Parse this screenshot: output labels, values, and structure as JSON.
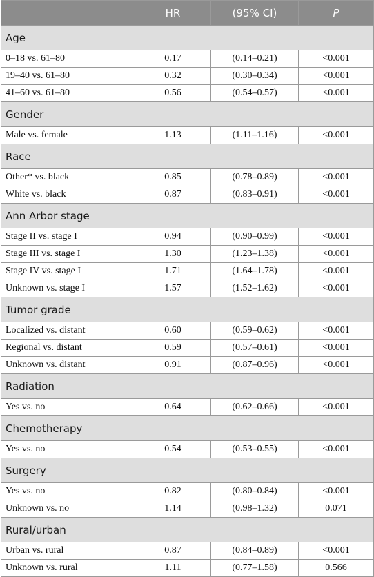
{
  "header": {
    "label": "",
    "hr": "HR",
    "ci": "(95% CI)",
    "p": "P"
  },
  "groups": [
    {
      "title": "Age",
      "rows": [
        {
          "label": "0–18 vs. 61–80",
          "hr": "0.17",
          "ci": "(0.14–0.21)",
          "p": "<0.001"
        },
        {
          "label": "19–40 vs. 61–80",
          "hr": "0.32",
          "ci": "(0.30–0.34)",
          "p": "<0.001"
        },
        {
          "label": "41–60 vs. 61–80",
          "hr": "0.56",
          "ci": "(0.54–0.57)",
          "p": "<0.001"
        }
      ]
    },
    {
      "title": "Gender",
      "rows": [
        {
          "label": "Male vs. female",
          "hr": "1.13",
          "ci": "(1.11–1.16)",
          "p": "<0.001"
        }
      ]
    },
    {
      "title": "Race",
      "rows": [
        {
          "label": "Other* vs. black",
          "hr": "0.85",
          "ci": "(0.78–0.89)",
          "p": "<0.001"
        },
        {
          "label": "White vs. black",
          "hr": "0.87",
          "ci": "(0.83–0.91)",
          "p": "<0.001"
        }
      ]
    },
    {
      "title": "Ann Arbor stage",
      "rows": [
        {
          "label": "Stage II vs. stage I",
          "hr": "0.94",
          "ci": "(0.90–0.99)",
          "p": "<0.001"
        },
        {
          "label": "Stage III vs. stage I",
          "hr": "1.30",
          "ci": "(1.23–1.38)",
          "p": "<0.001"
        },
        {
          "label": "Stage IV vs. stage I",
          "hr": "1.71",
          "ci": "(1.64–1.78)",
          "p": "<0.001"
        },
        {
          "label": "Unknown vs. stage I",
          "hr": "1.57",
          "ci": "(1.52–1.62)",
          "p": "<0.001"
        }
      ]
    },
    {
      "title": "Tumor grade",
      "rows": [
        {
          "label": "Localized vs. distant",
          "hr": "0.60",
          "ci": "(0.59–0.62)",
          "p": "<0.001"
        },
        {
          "label": "Regional vs. distant",
          "hr": "0.59",
          "ci": "(0.57–0.61)",
          "p": "<0.001"
        },
        {
          "label": "Unknown vs. distant",
          "hr": "0.91",
          "ci": "(0.87–0.96)",
          "p": "<0.001"
        }
      ]
    },
    {
      "title": "Radiation",
      "rows": [
        {
          "label": "Yes vs. no",
          "hr": "0.64",
          "ci": "(0.62–0.66)",
          "p": "<0.001"
        }
      ]
    },
    {
      "title": "Chemotherapy",
      "rows": [
        {
          "label": "Yes vs. no",
          "hr": "0.54",
          "ci": "(0.53–0.55)",
          "p": "<0.001"
        }
      ]
    },
    {
      "title": "Surgery",
      "rows": [
        {
          "label": "Yes vs. no",
          "hr": "0.82",
          "ci": "(0.80–0.84)",
          "p": "<0.001"
        },
        {
          "label": "Unknown vs. no",
          "hr": "1.14",
          "ci": "(0.98–1.32)",
          "p": "0.071"
        }
      ]
    },
    {
      "title": "Rural/urban",
      "rows": [
        {
          "label": "Urban vs. rural",
          "hr": "0.87",
          "ci": "(0.84–0.89)",
          "p": "<0.001"
        },
        {
          "label": "Unknown vs. rural",
          "hr": "1.11",
          "ci": "(0.77–1.58)",
          "p": "0.566"
        }
      ]
    }
  ]
}
